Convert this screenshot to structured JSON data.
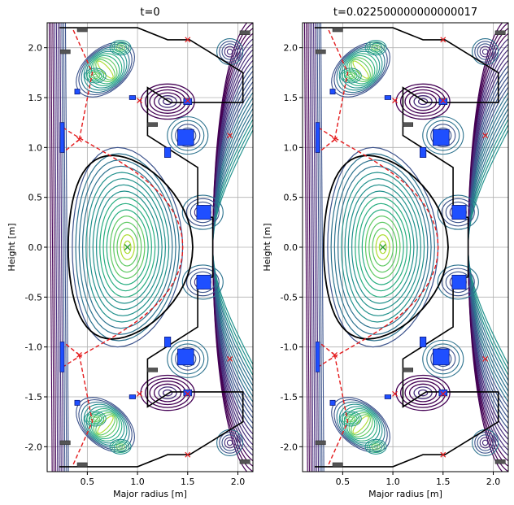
{
  "chart_data": [
    {
      "type": "contour",
      "title": "t=0",
      "xlabel": "Major radius [m]",
      "ylabel": "Height [m]",
      "xlim": [
        0.1,
        2.15
      ],
      "ylim": [
        -2.25,
        2.25
      ],
      "xticks": [
        "0.5",
        "1.0",
        "1.5",
        "2.0"
      ],
      "yticks": [
        "-2.0",
        "-1.5",
        "-1.0",
        "-0.5",
        "0.0",
        "0.5",
        "1.0",
        "1.5",
        "2.0"
      ],
      "grid": true,
      "magnetic_axis": [
        0.9,
        0.0
      ],
      "x_points": [
        [
          0.42,
          1.08
        ],
        [
          0.42,
          -1.08
        ],
        [
          1.02,
          1.47
        ],
        [
          1.02,
          -1.47
        ],
        [
          1.5,
          2.08
        ],
        [
          1.5,
          -2.08
        ],
        [
          1.5,
          1.47
        ],
        [
          1.5,
          -1.47
        ],
        [
          1.92,
          1.12
        ],
        [
          1.92,
          -1.12
        ]
      ]
    },
    {
      "type": "contour",
      "title": "t=0.022500000000000017",
      "xlabel": "Major radius [m]",
      "ylabel": "Height [m]",
      "xlim": [
        0.1,
        2.15
      ],
      "ylim": [
        -2.25,
        2.25
      ],
      "xticks": [
        "0.5",
        "1.0",
        "1.5",
        "2.0"
      ],
      "yticks": [
        "-2.0",
        "-1.5",
        "-1.0",
        "-0.5",
        "0.0",
        "0.5",
        "1.0",
        "1.5",
        "2.0"
      ],
      "grid": true,
      "magnetic_axis": [
        0.9,
        0.0
      ],
      "x_points": [
        [
          0.42,
          1.08
        ],
        [
          0.42,
          -1.08
        ],
        [
          1.02,
          1.47
        ],
        [
          1.02,
          -1.47
        ],
        [
          1.5,
          2.08
        ],
        [
          1.5,
          -2.08
        ],
        [
          1.5,
          1.47
        ],
        [
          1.5,
          -1.47
        ],
        [
          1.92,
          1.12
        ],
        [
          1.92,
          -1.12
        ]
      ]
    }
  ]
}
